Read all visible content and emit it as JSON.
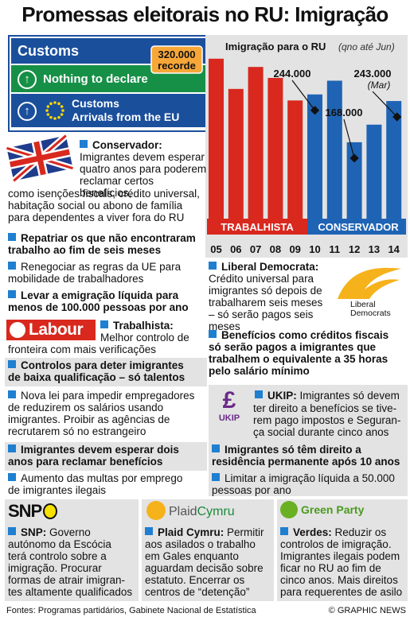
{
  "title": "Promessas eleitorais no RU: Imigração",
  "sign": {
    "customs": "Customs",
    "nothing": "Nothing to declare",
    "customs2": "Customs",
    "eu": "Arrivals from the EU"
  },
  "chart_data": {
    "type": "bar",
    "title": "Imigração para o RU",
    "subtitle": "(qno até Jun)",
    "categories": [
      "05",
      "06",
      "07",
      "08",
      "09",
      "10",
      "11",
      "12",
      "13",
      "14"
    ],
    "values": [
      320000,
      265000,
      305000,
      285000,
      244000,
      255000,
      280000,
      168000,
      200000,
      243000
    ],
    "series_groups": [
      {
        "name": "TRABALHISTA",
        "from": 0,
        "to": 4,
        "color": "#d9281e"
      },
      {
        "name": "CONSERVADOR",
        "from": 5,
        "to": 9,
        "color": "#1f64b4"
      }
    ],
    "annotations": [
      {
        "text": "320.000",
        "text2": "recorde",
        "index": 0
      },
      {
        "text": "244.000",
        "index": 4
      },
      {
        "text": "168.000",
        "index": 7
      },
      {
        "text": "243.000",
        "text2": "(Mar)",
        "index": 9
      }
    ],
    "ylim": [
      0,
      340000
    ]
  },
  "conservative": {
    "head": "Conservador:",
    "p1": "Imigrantes devem esperar\nquatro anos para poderem\nreclamar certos benefícios,",
    "p1b": "como isenções fiscais, crédito universal,\nhabitação social ou abono de família\npara dependentes a viver fora do RU",
    "p2": "Repatriar os que não encontraram\ntrabalho ao fim de seis meses",
    "p3": "Renegociar as regras da UE para\nmobilidade de trabalhadores",
    "p4": "Levar a emigração líquida para\nmenos de 100.000 pessoas por ano"
  },
  "libdem": {
    "head": "Liberal Democrata:",
    "p1": "Crédito universal para\nimigrantes só depois de\ntrabalharem seis meses\n– só serão pagos seis meses",
    "p2": "Benefícios como créditos fiscais\nsó serão pagos a imigrantes que\ntrabalhem o equivalente a 35 horas\npelo salário mínimo",
    "logo1": "Liberal",
    "logo2": "Democrats"
  },
  "labour": {
    "logo": "Labour",
    "head": "Trabalhista:",
    "p1a": "Melhor controlo de",
    "p1b": "fronteira com mais verificações",
    "p2": "Controlos para deter imigrantes\nde baixa qualificação – só talentos",
    "p3": "Nova lei para impedir empregadores\nde reduzirem os salários usando\nimigrantes. Proibir as agências de\nrecrutarem só no estrangeiro",
    "p4": "Imigrantes devem esperar dois\nanos para reclamar benefícios",
    "p5": "Aumento das multas por emprego\nde imigrantes ilegais"
  },
  "ukip": {
    "logo": "UKIP",
    "head": "UKIP:",
    "p1a": "Imigrantes só devem",
    "p1b": "ter direito a benefícios se tive-\nrem pago impostos e Seguran-\nça social durante cinco anos",
    "p2": "Imigrantes só têm direito a\nresidência permanente após 10 anos",
    "p3": "Limitar a imigração líquida a 50.000\npessoas por ano"
  },
  "snp": {
    "logo": "SNP",
    "head": "SNP:",
    "p1a": "Governo",
    "p1b": "autónomo da Escócia\nterá controlo sobre a\nimigração. Procurar\nformas de atrair imigran-\ntes altamente qualificados"
  },
  "plaid": {
    "logo1": "Plaid",
    "logo2": "Cymru",
    "head": "Plaid Cymru:",
    "p1a": "Permitir",
    "p1b": "aos asilados o trabalho\nem Gales enquanto\naguardam decisão sobre\nestatuto. Encerrar os\ncentros de “detenção”"
  },
  "green": {
    "logo": "Green Party",
    "head": "Verdes:",
    "p1a": "Reduzir os",
    "p1b": "controlos de imigração.\nImigrantes ilegais podem\nficar no RU ao fim de\ncinco anos. Mais direitos\npara requerentes de asilo"
  },
  "footer": {
    "source": "Fontes: Programas partidários, Gabinete Nacional de Estatística",
    "credit": "© GRAPHIC NEWS"
  }
}
